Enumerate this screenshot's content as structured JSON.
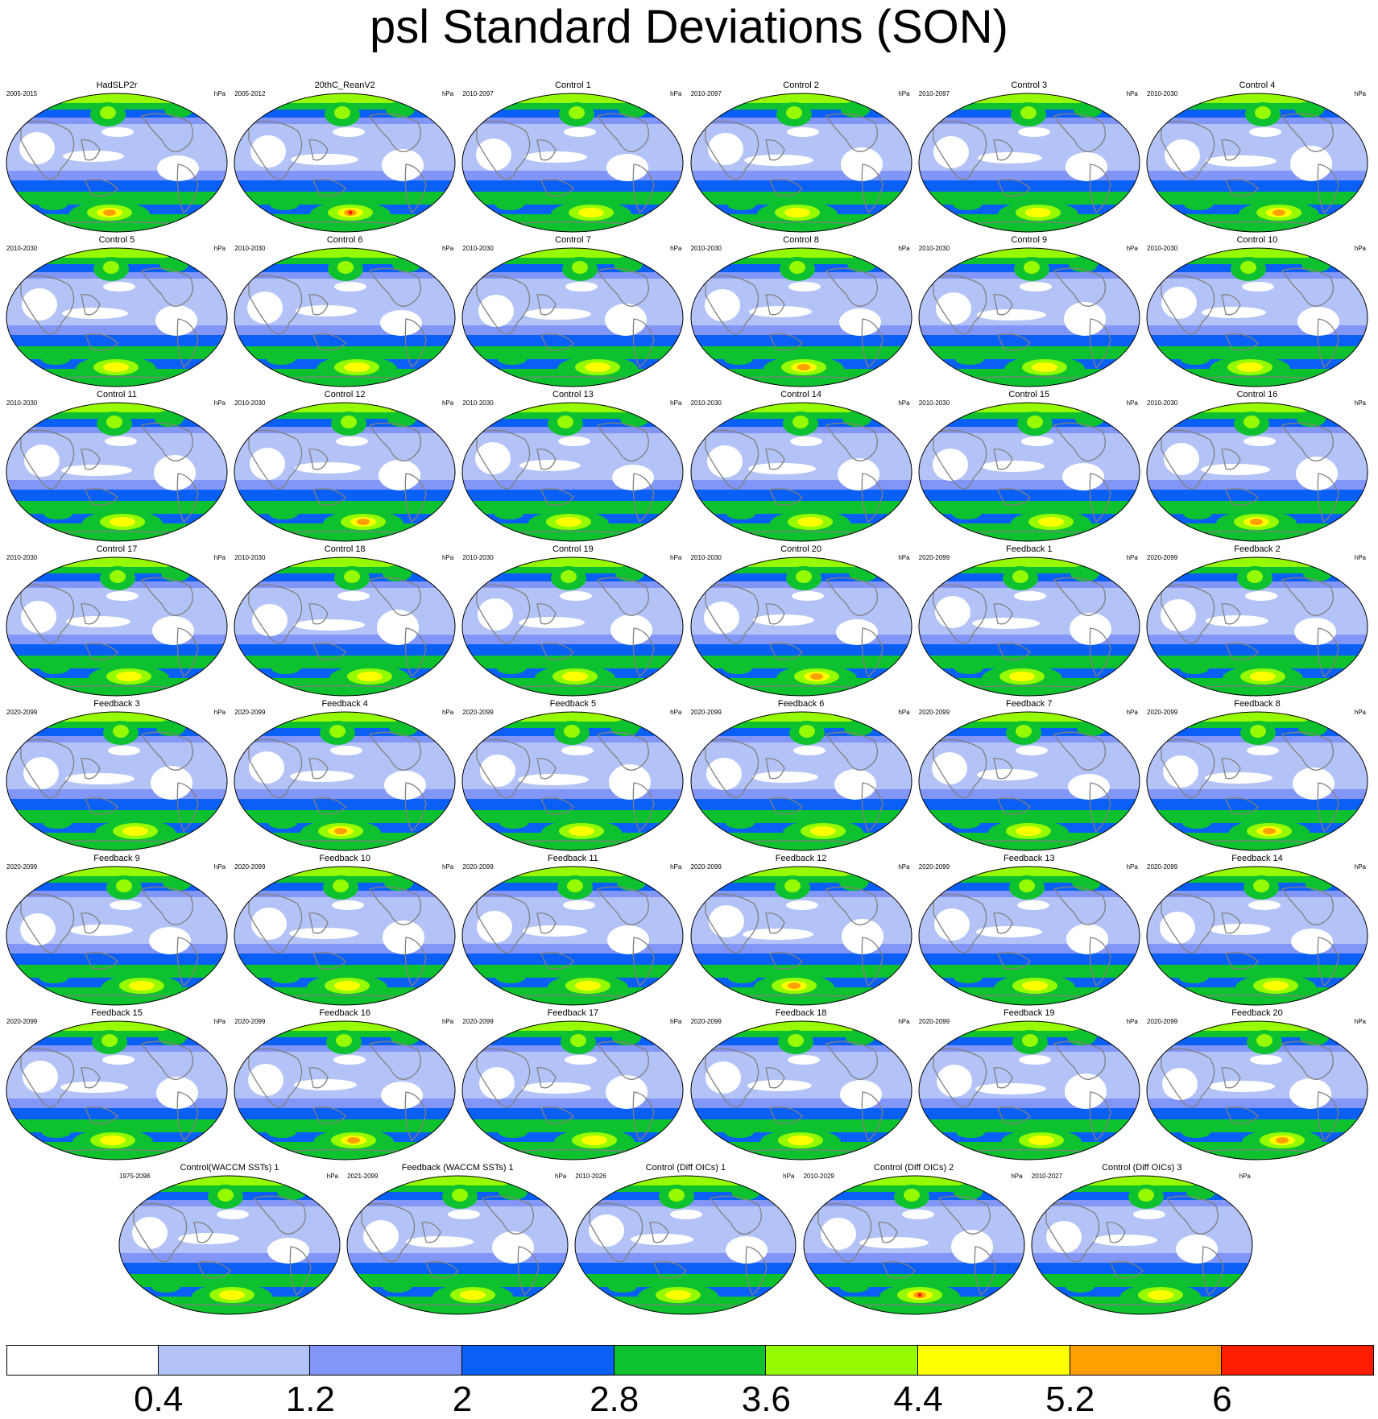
{
  "title": "psl Standard Deviations (SON)",
  "units": "hPa",
  "colorbar": {
    "colors": [
      "#ffffff",
      "#b4c3f7",
      "#8296f7",
      "#0a5ff5",
      "#0dc22e",
      "#97fb00",
      "#ffff00",
      "#ff9f00",
      "#ff1d00"
    ],
    "labels": [
      "0.4",
      "1.2",
      "2",
      "2.8",
      "3.6",
      "4.4",
      "5.2",
      "6"
    ]
  },
  "panels": [
    {
      "title": "HadSLP2r",
      "period": "2005-2015"
    },
    {
      "title": "20thC_ReanV2",
      "period": "2005-2012"
    },
    {
      "title": "Control 1",
      "period": "2010-2097"
    },
    {
      "title": "Control 2",
      "period": "2010-2097"
    },
    {
      "title": "Control 3",
      "period": "2010-2097"
    },
    {
      "title": "Control 4",
      "period": "2010-2030"
    },
    {
      "title": "Control 5",
      "period": "2010-2030"
    },
    {
      "title": "Control 6",
      "period": "2010-2030"
    },
    {
      "title": "Control 7",
      "period": "2010-2030"
    },
    {
      "title": "Control 8",
      "period": "2010-2030"
    },
    {
      "title": "Control 9",
      "period": "2010-2030"
    },
    {
      "title": "Control 10",
      "period": "2010-2030"
    },
    {
      "title": "Control 11",
      "period": "2010-2030"
    },
    {
      "title": "Control 12",
      "period": "2010-2030"
    },
    {
      "title": "Control 13",
      "period": "2010-2030"
    },
    {
      "title": "Control 14",
      "period": "2010-2030"
    },
    {
      "title": "Control 15",
      "period": "2010-2030"
    },
    {
      "title": "Control 16",
      "period": "2010-2030"
    },
    {
      "title": "Control 17",
      "period": "2010-2030"
    },
    {
      "title": "Control 18",
      "period": "2010-2030"
    },
    {
      "title": "Control 19",
      "period": "2010-2030"
    },
    {
      "title": "Control 20",
      "period": "2010-2030"
    },
    {
      "title": "Feedback 1",
      "period": "2020-2099"
    },
    {
      "title": "Feedback 2",
      "period": "2020-2099"
    },
    {
      "title": "Feedback 3",
      "period": "2020-2099"
    },
    {
      "title": "Feedback 4",
      "period": "2020-2099"
    },
    {
      "title": "Feedback 5",
      "period": "2020-2099"
    },
    {
      "title": "Feedback 6",
      "period": "2020-2099"
    },
    {
      "title": "Feedback 7",
      "period": "2020-2099"
    },
    {
      "title": "Feedback 8",
      "period": "2020-2099"
    },
    {
      "title": "Feedback 9",
      "period": "2020-2099"
    },
    {
      "title": "Feedback 10",
      "period": "2020-2099"
    },
    {
      "title": "Feedback 11",
      "period": "2020-2099"
    },
    {
      "title": "Feedback 12",
      "period": "2020-2099"
    },
    {
      "title": "Feedback 13",
      "period": "2020-2099"
    },
    {
      "title": "Feedback 14",
      "period": "2020-2099"
    },
    {
      "title": "Feedback 15",
      "period": "2020-2099"
    },
    {
      "title": "Feedback 16",
      "period": "2020-2099"
    },
    {
      "title": "Feedback 17",
      "period": "2020-2099"
    },
    {
      "title": "Feedback 18",
      "period": "2020-2099"
    },
    {
      "title": "Feedback 19",
      "period": "2020-2099"
    },
    {
      "title": "Feedback 20",
      "period": "2020-2099"
    },
    {
      "title": "Control(WACCM SSTs) 1",
      "period": "1975-2098"
    },
    {
      "title": "Feedback (WACCM SSTs) 1",
      "period": "2021-2099"
    },
    {
      "title": "Control (Diff OICs) 1",
      "period": "2010-2026"
    },
    {
      "title": "Control (Diff OICs) 2",
      "period": "2010-2029"
    },
    {
      "title": "Control (Diff OICs) 3",
      "period": "2010-2027"
    }
  ]
}
